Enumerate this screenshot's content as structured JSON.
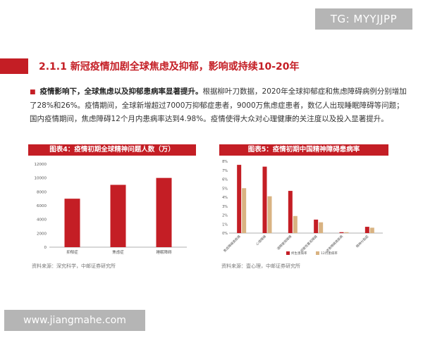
{
  "watermarks": {
    "top": "TG: MYYJJPP",
    "bottom": "www.jiangmahe.com"
  },
  "section": {
    "title": "2.1.1 新冠疫情加剧全球焦虑及抑郁，影响或持续10-20年"
  },
  "paragraph": {
    "bullet": "■",
    "bold_lead": "疫情影响下，全球焦虑以及抑郁患病率显著提升。",
    "body": "根据柳叶刀数据，2020年全球抑郁症和焦虑障碍病例分别增加了28%和26%。疫情期间，全球新增超过7000万抑郁症患者，9000万焦虑症患者，数亿人出现睡眠障碍等问题；国内疫情期间，焦虑障碍12个月内患病率达到4.98%。疫情使得大众对心理健康的关注度以及投入显著提升。"
  },
  "colors": {
    "accent": "#c41e25",
    "bar_red": "#c41e25",
    "bar_tan": "#d9b382"
  },
  "chart_data": [
    {
      "type": "bar",
      "title": "图表4：疫情初期全球精神问题人数（万）",
      "categories": [
        "抑郁症",
        "焦虑症",
        "睡眠障碍"
      ],
      "values": [
        7000,
        9000,
        10000
      ],
      "ylim": [
        0,
        12000
      ],
      "yticks": [
        0,
        2000,
        4000,
        6000,
        8000,
        10000,
        12000
      ],
      "xlabel": "",
      "ylabel": "",
      "grid": false,
      "source": "资料来源：深究科学，中邮证券研究所"
    },
    {
      "type": "bar",
      "title": "图表5：疫情初期中国精神障碍患病率",
      "categories": [
        "焦虑障碍类疾病",
        "心境障碍",
        "酒精使用障碍",
        "间歇性暴发障碍",
        "进食障碍类疾病",
        "精神分裂症"
      ],
      "series": [
        {
          "name": "终生患病率",
          "values": [
            7.6,
            7.4,
            4.7,
            1.5,
            0.1,
            0.7
          ]
        },
        {
          "name": "12月患病率",
          "values": [
            5.0,
            4.1,
            1.9,
            1.2,
            0.1,
            0.6
          ]
        }
      ],
      "ylim": [
        0,
        8
      ],
      "yticks": [
        "0%",
        "1%",
        "2%",
        "3%",
        "4%",
        "5%",
        "6%",
        "7%",
        "8%"
      ],
      "legend_position": "bottom",
      "source": "资料来源：壹心理，中邮证券研究所"
    }
  ]
}
